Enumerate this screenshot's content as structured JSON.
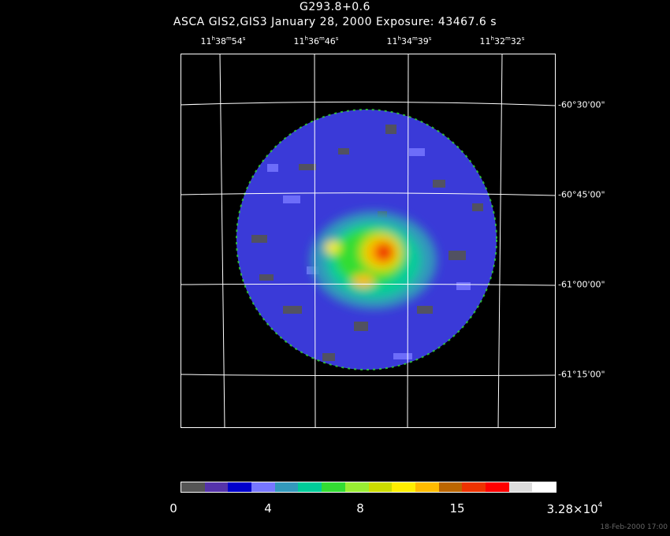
{
  "header": {
    "object_name": "G293.8+0.6",
    "observation": "ASCA GIS2,GIS3 January 28, 2000 Exposure: 43467.6 s"
  },
  "ra_labels": [
    {
      "h": "11",
      "h_unit": "h",
      "m": "38",
      "m_unit": "m",
      "s": "54",
      "s_unit": "s"
    },
    {
      "h": "11",
      "h_unit": "h",
      "m": "36",
      "m_unit": "m",
      "s": "46",
      "s_unit": "s"
    },
    {
      "h": "11",
      "h_unit": "h",
      "m": "34",
      "m_unit": "m",
      "s": "39",
      "s_unit": "s"
    },
    {
      "h": "11",
      "h_unit": "h",
      "m": "32",
      "m_unit": "m",
      "s": "32",
      "s_unit": "s"
    }
  ],
  "dec_labels": [
    "-60°30'00\"",
    "-60°45'00\"",
    "-61°00'00\"",
    "-61°15'00\""
  ],
  "colorbar": {
    "colors": [
      "#555555",
      "#5533aa",
      "#0000cc",
      "#7777ff",
      "#3399bb",
      "#00cc99",
      "#33dd33",
      "#99ee33",
      "#ccdd00",
      "#ffee00",
      "#ffbb00",
      "#bb6600",
      "#ee3300",
      "#ff0000",
      "#dddddd",
      "#ffffff"
    ],
    "labels": [
      {
        "text": "0"
      },
      {
        "text": "4"
      },
      {
        "text": "8"
      },
      {
        "text": "15"
      },
      {
        "text": "3.28×10",
        "sup": "4"
      }
    ]
  },
  "footer_timestamp": "18-Feb-2000 17:00"
}
